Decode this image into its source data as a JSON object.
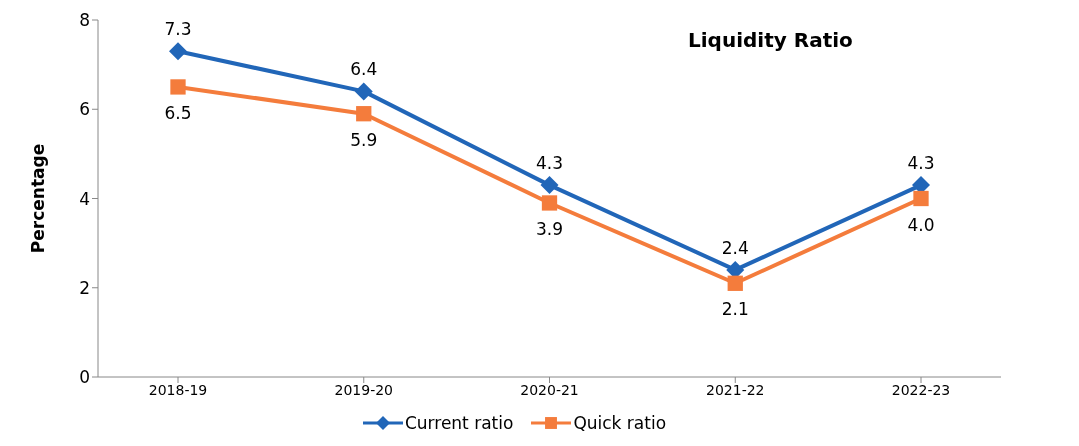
{
  "chart_data": {
    "type": "line",
    "title": "Liquidity Ratio",
    "ylabel": "Percentage",
    "categories": [
      "2018-19",
      "2019-20",
      "2020-21",
      "2021-22",
      "2022-23"
    ],
    "series": [
      {
        "name": "Current ratio",
        "color": "#2166b8",
        "marker": "diamond",
        "values": [
          7.3,
          6.4,
          4.3,
          2.4,
          4.3
        ],
        "value_labels": [
          "7.3",
          "6.4",
          "4.3",
          "2.4",
          "4.3"
        ]
      },
      {
        "name": "Quick ratio",
        "color": "#f47c3c",
        "marker": "square",
        "values": [
          6.5,
          5.9,
          3.9,
          2.1,
          4.0
        ],
        "value_labels": [
          "6.5",
          "5.9",
          "3.9",
          "2.1",
          "4.0"
        ]
      }
    ],
    "ylim": [
      0,
      8
    ],
    "yticks": [
      0,
      2,
      4,
      6,
      8
    ],
    "grid": false,
    "legend": "bottom"
  }
}
